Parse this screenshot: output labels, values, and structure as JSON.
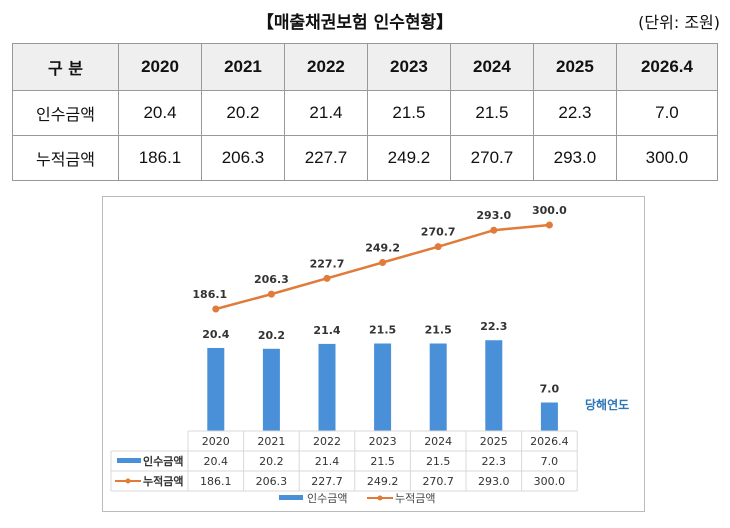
{
  "title": "【매출채권보험 인수현황】",
  "unit": "(단위: 조원)",
  "table": {
    "header_label": "구   분",
    "years": [
      "2020",
      "2021",
      "2022",
      "2023",
      "2024",
      "2025",
      "2026.4"
    ],
    "rows": [
      {
        "label": "인수금액",
        "values": [
          "20.4",
          "20.2",
          "21.4",
          "21.5",
          "21.5",
          "22.3",
          "7.0"
        ]
      },
      {
        "label": "누적금액",
        "values": [
          "186.1",
          "206.3",
          "227.7",
          "249.2",
          "270.7",
          "293.0",
          "300.0"
        ]
      }
    ]
  },
  "chart_data": {
    "type": "bar+line",
    "categories": [
      "2020",
      "2021",
      "2022",
      "2023",
      "2024",
      "2025",
      "2026.4"
    ],
    "series": [
      {
        "name": "인수금액",
        "type": "bar",
        "color": "#4a90d9",
        "values": [
          20.4,
          20.2,
          21.4,
          21.5,
          21.5,
          22.3,
          7.0
        ],
        "labels": [
          "20.4",
          "20.2",
          "21.4",
          "21.5",
          "21.5",
          "22.3",
          "7.0"
        ]
      },
      {
        "name": "누적금액",
        "type": "line",
        "color": "#e07b39",
        "values": [
          186.1,
          206.3,
          227.7,
          249.2,
          270.7,
          293.0,
          300.0
        ],
        "labels": [
          "186.1",
          "206.3",
          "227.7",
          "249.2",
          "270.7",
          "293.0",
          "300.0"
        ]
      }
    ],
    "annotation": "당해연도",
    "annotation_color": "#2e75b6",
    "legend": "bottom",
    "data_table": true,
    "grid": false
  }
}
